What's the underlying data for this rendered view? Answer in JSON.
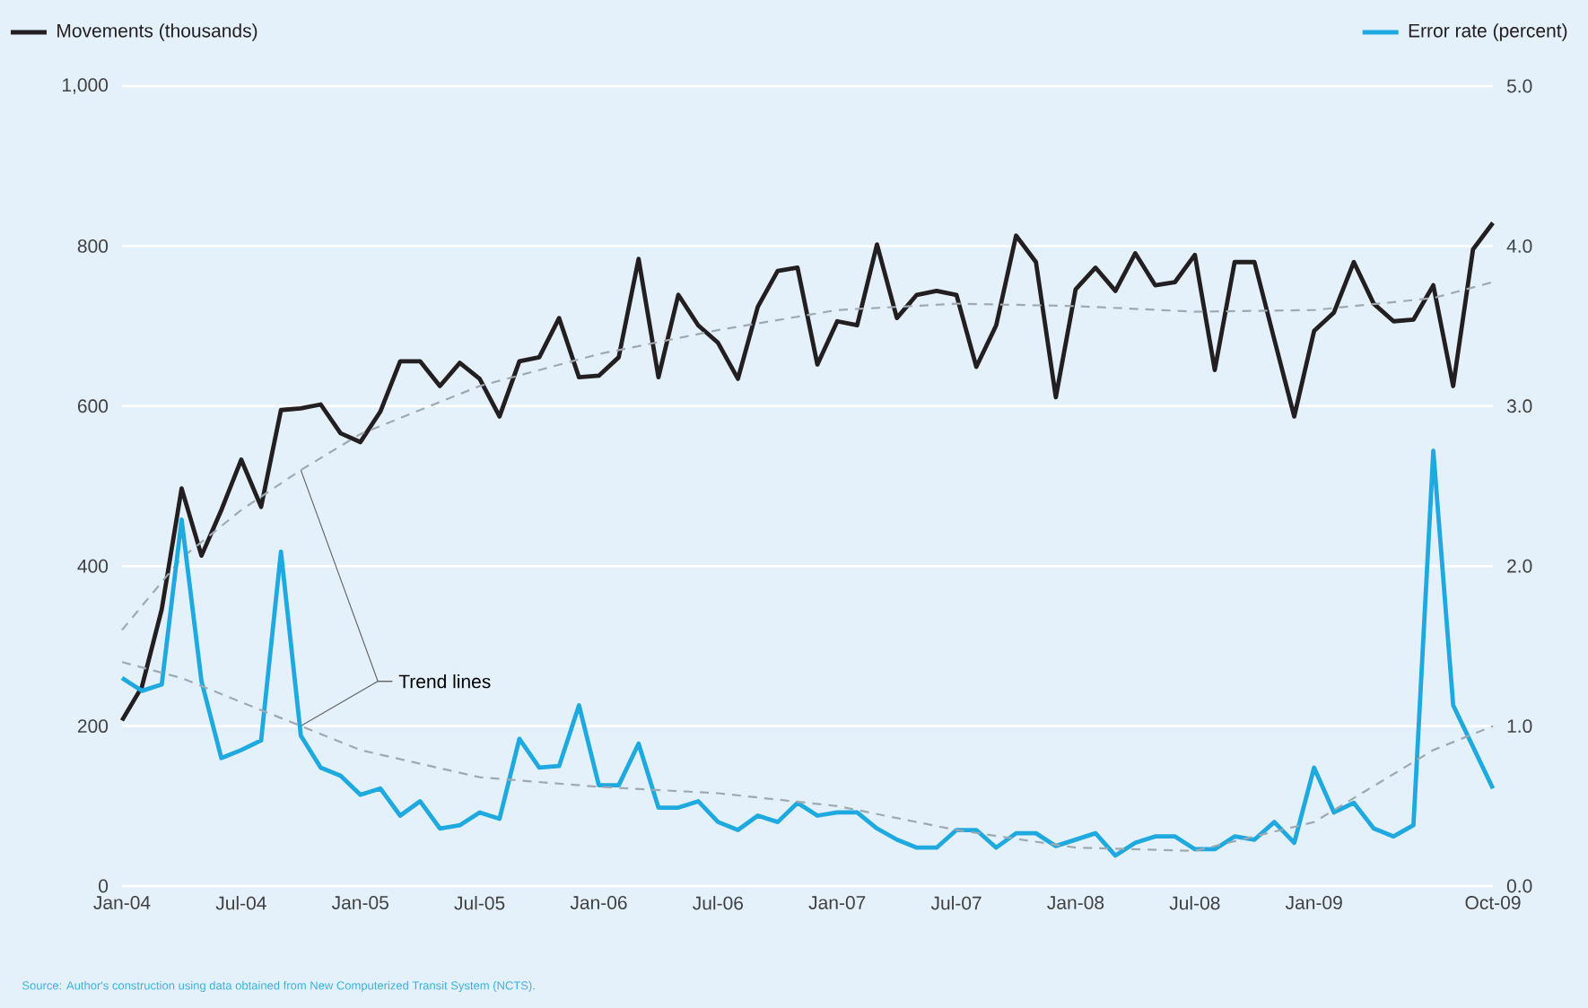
{
  "chart_data": {
    "type": "line",
    "x": [
      "2004-01",
      "2004-02",
      "2004-03",
      "2004-04",
      "2004-05",
      "2004-06",
      "2004-07",
      "2004-08",
      "2004-09",
      "2004-10",
      "2004-11",
      "2004-12",
      "2005-01",
      "2005-02",
      "2005-03",
      "2005-04",
      "2005-05",
      "2005-06",
      "2005-07",
      "2005-08",
      "2005-09",
      "2005-10",
      "2005-11",
      "2005-12",
      "2006-01",
      "2006-02",
      "2006-03",
      "2006-04",
      "2006-05",
      "2006-06",
      "2006-07",
      "2006-08",
      "2006-09",
      "2006-10",
      "2006-11",
      "2006-12",
      "2007-01",
      "2007-02",
      "2007-03",
      "2007-04",
      "2007-05",
      "2007-06",
      "2007-07",
      "2007-08",
      "2007-09",
      "2007-10",
      "2007-11",
      "2007-12",
      "2008-01",
      "2008-02",
      "2008-03",
      "2008-04",
      "2008-05",
      "2008-06",
      "2008-07",
      "2008-08",
      "2008-09",
      "2008-10",
      "2008-11",
      "2008-12",
      "2009-01",
      "2009-02",
      "2009-03",
      "2009-04",
      "2009-05",
      "2009-06",
      "2009-07",
      "2009-08",
      "2009-09",
      "2009-10"
    ],
    "series": [
      {
        "name": "Movements (thousands)",
        "color": "#231f20",
        "values": [
          207,
          249,
          346,
          497,
          413,
          470,
          533,
          474,
          595,
          597,
          602,
          566,
          555,
          593,
          656,
          656,
          625,
          654,
          634,
          587,
          656,
          661,
          710,
          636,
          638,
          661,
          784,
          636,
          739,
          701,
          679,
          634,
          724,
          769,
          773,
          652,
          706,
          701,
          802,
          710,
          739,
          744,
          739,
          649,
          701,
          813,
          780,
          611,
          746,
          773,
          744,
          791,
          751,
          755,
          789,
          645,
          780,
          780,
          683,
          587,
          694,
          717,
          780,
          728,
          706,
          708,
          751,
          625,
          796,
          829
        ]
      },
      {
        "name": "Error rate (percent)",
        "color": "#1fa9e1",
        "axis": "y2",
        "values": [
          1.3,
          1.22,
          1.26,
          2.29,
          1.28,
          0.8,
          0.85,
          0.91,
          2.09,
          0.94,
          0.74,
          0.69,
          0.57,
          0.61,
          0.44,
          0.53,
          0.36,
          0.38,
          0.46,
          0.42,
          0.92,
          0.74,
          0.75,
          1.13,
          0.63,
          0.63,
          0.89,
          0.49,
          0.49,
          0.53,
          0.4,
          0.35,
          0.44,
          0.4,
          0.52,
          0.44,
          0.46,
          0.46,
          0.36,
          0.29,
          0.24,
          0.24,
          0.35,
          0.35,
          0.24,
          0.33,
          0.33,
          0.25,
          0.29,
          0.33,
          0.19,
          0.27,
          0.31,
          0.31,
          0.23,
          0.23,
          0.31,
          0.29,
          0.4,
          0.27,
          0.74,
          0.46,
          0.52,
          0.36,
          0.31,
          0.38,
          2.72,
          1.13,
          0.87,
          0.61
        ]
      },
      {
        "color": "#a0a8b0",
        "line_style": "dashed",
        "x": [
          "2004-01",
          "2004-04",
          "2004-07",
          "2004-10",
          "2005-01",
          "2005-07",
          "2006-01",
          "2006-07",
          "2007-01",
          "2007-07",
          "2008-01",
          "2008-07",
          "2009-01",
          "2009-07",
          "2009-10"
        ],
        "values": [
          320,
          410,
          470,
          520,
          565,
          625,
          665,
          695,
          720,
          728,
          725,
          718,
          720,
          735,
          755
        ]
      },
      {
        "color": "#a0a8b0",
        "line_style": "dashed",
        "axis": "y2",
        "x": [
          "2004-01",
          "2004-04",
          "2004-07",
          "2004-10",
          "2005-01",
          "2005-07",
          "2006-01",
          "2006-07",
          "2007-01",
          "2007-07",
          "2008-01",
          "2008-07",
          "2009-01",
          "2009-07",
          "2009-10"
        ],
        "values": [
          1.4,
          1.3,
          1.15,
          1.0,
          0.85,
          0.68,
          0.62,
          0.58,
          0.5,
          0.35,
          0.24,
          0.22,
          0.4,
          0.85,
          1.0
        ]
      }
    ],
    "xlim": [
      "2004-01",
      "2009-10"
    ],
    "xticks": [
      {
        "value": "2004-01",
        "label": "Jan-04"
      },
      {
        "value": "2004-07",
        "label": "Jul-04"
      },
      {
        "value": "2005-01",
        "label": "Jan-05"
      },
      {
        "value": "2005-07",
        "label": "Jul-05"
      },
      {
        "value": "2006-01",
        "label": "Jan-06"
      },
      {
        "value": "2006-07",
        "label": "Jul-06"
      },
      {
        "value": "2007-01",
        "label": "Jan-07"
      },
      {
        "value": "2007-07",
        "label": "Jul-07"
      },
      {
        "value": "2008-01",
        "label": "Jan-08"
      },
      {
        "value": "2008-07",
        "label": "Jul-08"
      },
      {
        "value": "2009-01",
        "label": "Jan-09"
      },
      {
        "value": "2009-10",
        "label": "Oct-09"
      }
    ],
    "ylim": [
      0,
      1000
    ],
    "yticks": [
      0,
      200,
      400,
      600,
      800,
      {
        "value": 1000,
        "label": "1,000"
      }
    ],
    "y2lim": [
      0,
      5
    ],
    "y2ticks": [
      {
        "value": 0,
        "label": "0.0"
      },
      {
        "value": 1,
        "label": "1.0"
      },
      {
        "value": 2,
        "label": "2.0"
      },
      {
        "value": 3,
        "label": "3.0"
      },
      {
        "value": 4,
        "label": "4.0"
      },
      {
        "value": 5,
        "label": "5.0"
      }
    ],
    "grid": "y",
    "legend": "top",
    "annotations": [
      {
        "text": "Trend lines",
        "x": "2004-10",
        "y": 520
      },
      "Source: Author's construction using data obtained from New Computerized Transit System (NCTS)."
    ]
  }
}
